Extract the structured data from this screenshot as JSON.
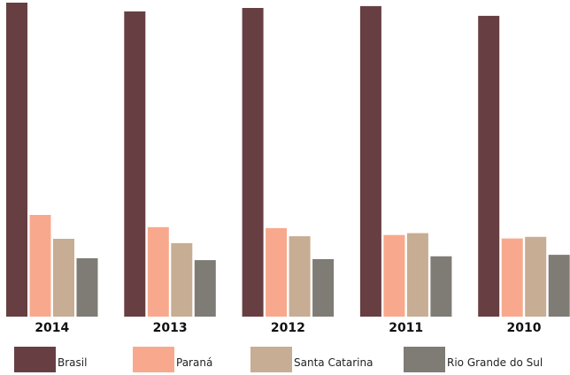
{
  "chart_data": {
    "type": "bar",
    "categories": [
      "2014",
      "2013",
      "2012",
      "2011",
      "2010"
    ],
    "series": [
      {
        "name": "Brasil",
        "color": "#673f42",
        "values": [
          100,
          97.2,
          98.3,
          98.9,
          95.8
        ]
      },
      {
        "name": "Paraná",
        "color": "#f8a98d",
        "values": [
          32.4,
          28.5,
          28.2,
          26.0,
          24.9
        ]
      },
      {
        "name": "Santa Catarina",
        "color": "#c7ad93",
        "values": [
          24.8,
          23.4,
          25.6,
          26.6,
          25.4
        ]
      },
      {
        "name": "Rio Grande do Sul",
        "color": "#7f7c75",
        "values": [
          18.6,
          18.0,
          18.3,
          19.2,
          19.7
        ]
      }
    ],
    "title": "",
    "xlabel": "",
    "ylabel": "",
    "ylim": [
      0,
      100
    ],
    "grid": false,
    "legend_position": "bottom"
  }
}
